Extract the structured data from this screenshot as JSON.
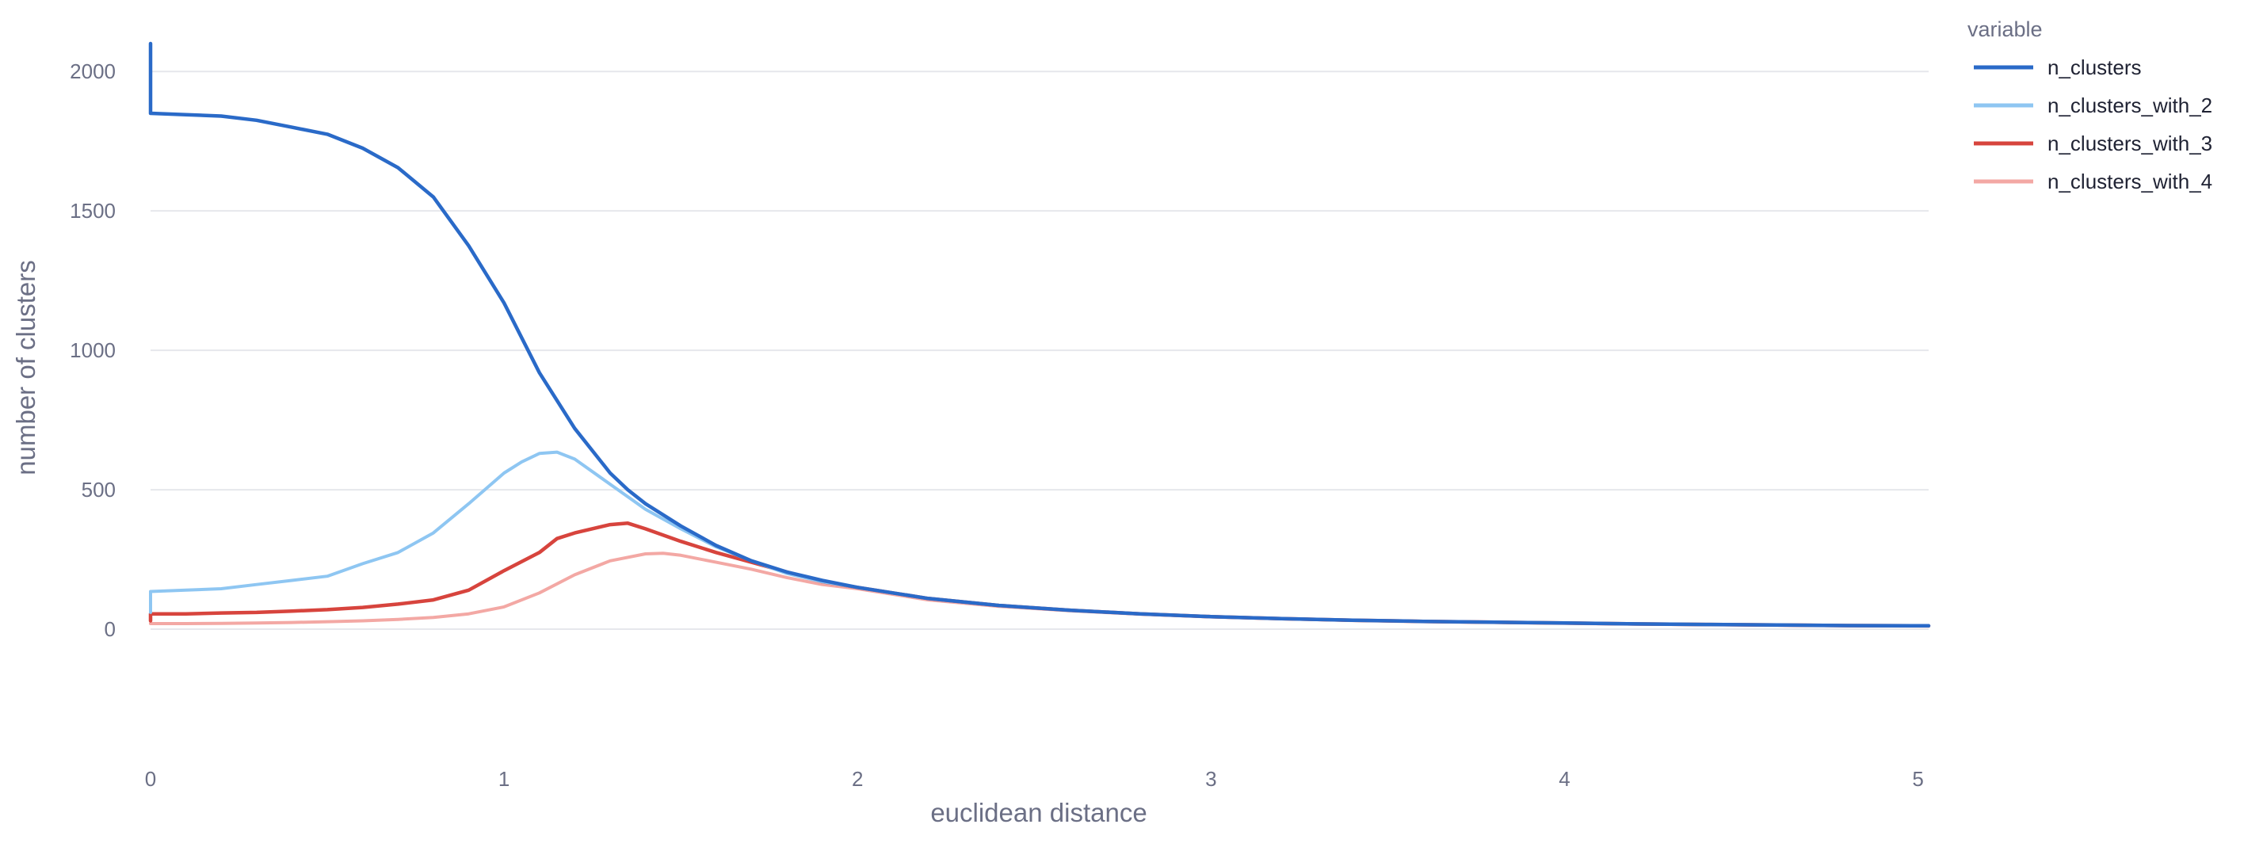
{
  "chart_data": {
    "type": "line",
    "title": "",
    "xlabel": "euclidean distance",
    "ylabel": "number of clusters",
    "xlim": [
      0,
      5.03
    ],
    "ylim": [
      -230,
      2100
    ],
    "x_ticks": [
      0,
      1,
      2,
      3,
      4,
      5
    ],
    "x_tick_labels": [
      "0",
      "1",
      "2",
      "3",
      "4",
      "5"
    ],
    "y_ticks": [
      0,
      500,
      1000,
      1500,
      2000
    ],
    "y_tick_labels": [
      "0",
      "500",
      "1000",
      "1500",
      "2000"
    ],
    "grid": "horizontal",
    "legend": {
      "title": "variable",
      "position": "top-right"
    },
    "series": [
      {
        "name": "n_clusters",
        "color": "#2a6ac8",
        "x": [
          0,
          0,
          0,
          0.1,
          0.2,
          0.3,
          0.4,
          0.5,
          0.6,
          0.7,
          0.8,
          0.9,
          1.0,
          1.1,
          1.2,
          1.3,
          1.35,
          1.4,
          1.5,
          1.6,
          1.7,
          1.8,
          1.9,
          2.0,
          2.2,
          2.4,
          2.6,
          2.8,
          3.0,
          3.2,
          3.4,
          3.6,
          3.8,
          4.0,
          4.2,
          4.4,
          4.6,
          4.8,
          5.03
        ],
        "y": [
          2100,
          1850,
          1850,
          1845,
          1840,
          1825,
          1800,
          1775,
          1725,
          1655,
          1550,
          1375,
          1170,
          920,
          720,
          560,
          500,
          450,
          370,
          300,
          245,
          205,
          175,
          150,
          110,
          85,
          68,
          55,
          45,
          38,
          32,
          28,
          25,
          22,
          19,
          17,
          15,
          13,
          12
        ]
      },
      {
        "name": "n_clusters_with_2",
        "color": "#8ec6f2",
        "x": [
          0,
          0,
          0.1,
          0.2,
          0.3,
          0.4,
          0.5,
          0.6,
          0.7,
          0.8,
          0.9,
          1.0,
          1.05,
          1.1,
          1.15,
          1.2,
          1.3,
          1.4,
          1.5,
          1.6,
          1.7,
          1.8,
          1.9,
          2.0,
          2.2,
          2.4,
          2.6,
          2.8,
          3.0,
          3.2,
          3.4,
          3.6,
          3.8,
          4.0,
          4.2,
          4.4,
          4.6,
          4.8,
          5.03
        ],
        "y": [
          60,
          135,
          140,
          145,
          160,
          175,
          190,
          235,
          275,
          345,
          450,
          560,
          600,
          630,
          635,
          610,
          520,
          430,
          360,
          295,
          245,
          200,
          170,
          150,
          110,
          85,
          68,
          55,
          45,
          38,
          32,
          28,
          25,
          22,
          19,
          17,
          15,
          13,
          12
        ]
      },
      {
        "name": "n_clusters_with_3",
        "color": "#d7443d",
        "x": [
          0,
          0,
          0.1,
          0.2,
          0.3,
          0.4,
          0.5,
          0.6,
          0.7,
          0.8,
          0.9,
          1.0,
          1.1,
          1.15,
          1.2,
          1.3,
          1.35,
          1.4,
          1.5,
          1.6,
          1.7,
          1.8,
          1.9,
          2.0,
          2.2,
          2.4,
          2.6,
          2.8,
          3.0,
          3.2,
          3.4,
          3.6,
          3.8,
          4.0,
          4.2,
          4.4,
          4.6,
          4.8,
          5.03
        ],
        "y": [
          30,
          55,
          55,
          58,
          60,
          65,
          70,
          78,
          90,
          105,
          140,
          210,
          275,
          325,
          345,
          375,
          380,
          360,
          315,
          275,
          240,
          205,
          170,
          150,
          110,
          85,
          68,
          55,
          45,
          38,
          32,
          28,
          25,
          22,
          19,
          17,
          15,
          13,
          12
        ]
      },
      {
        "name": "n_clusters_with_4",
        "color": "#f3a8a4",
        "x": [
          0,
          0.1,
          0.2,
          0.3,
          0.4,
          0.5,
          0.6,
          0.7,
          0.8,
          0.9,
          1.0,
          1.1,
          1.2,
          1.3,
          1.4,
          1.45,
          1.5,
          1.6,
          1.7,
          1.8,
          1.9,
          2.0,
          2.2,
          2.4,
          2.6,
          2.8,
          3.0,
          3.2,
          3.4,
          3.6,
          3.8,
          4.0,
          4.2,
          4.4,
          4.6,
          4.8,
          5.03
        ],
        "y": [
          20,
          20,
          21,
          22,
          24,
          27,
          30,
          35,
          42,
          55,
          80,
          130,
          195,
          245,
          270,
          272,
          265,
          240,
          215,
          185,
          160,
          145,
          105,
          82,
          66,
          54,
          44,
          37,
          31,
          27,
          24,
          21,
          18,
          16,
          14,
          12,
          11
        ]
      }
    ]
  }
}
